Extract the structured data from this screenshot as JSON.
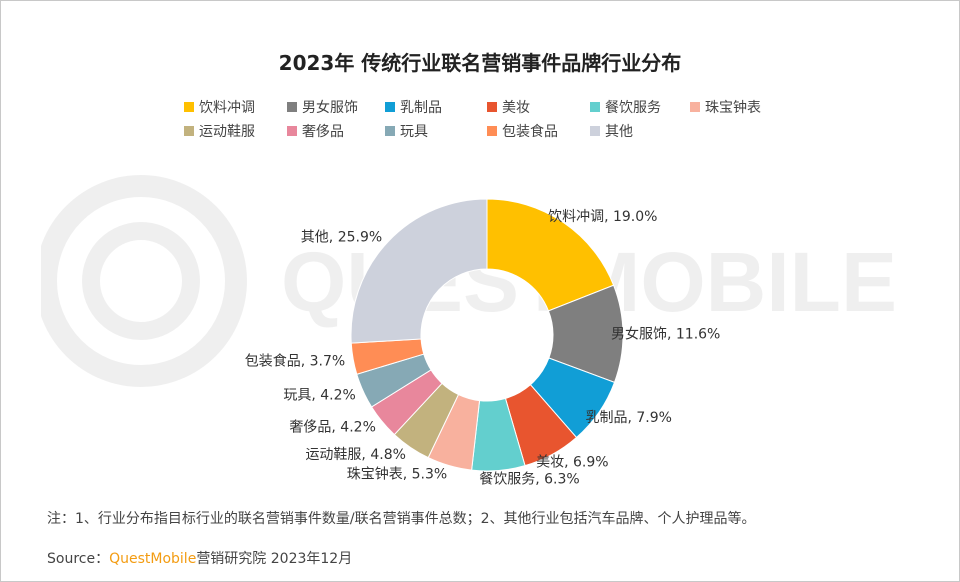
{
  "watermark": "QUESTMOBILE",
  "chart_data": {
    "type": "pie",
    "donut": true,
    "title": "2023年 传统行业联名营销事件品牌行业分布",
    "legend_position": "top",
    "categories": [
      "饮料冲调",
      "男女服饰",
      "乳制品",
      "美妆",
      "餐饮服务",
      "珠宝钟表",
      "运动鞋服",
      "奢侈品",
      "玩具",
      "包装食品",
      "其他"
    ],
    "values": [
      19.0,
      11.6,
      7.9,
      6.9,
      6.3,
      5.3,
      4.8,
      4.2,
      4.2,
      3.7,
      25.9
    ],
    "data_labels": [
      "饮料冲调, 19.0%",
      "男女服饰, 11.6%",
      "乳制品, 7.9%",
      "美妆, 6.9%",
      "餐饮服务, 6.3%",
      "珠宝钟表, 5.3%",
      "运动鞋服, 4.8%",
      "奢侈品, 4.2%",
      "玩具, 4.2%",
      "包装食品, 3.7%",
      "其他, 25.9%"
    ],
    "colors": [
      "#FFC000",
      "#7F7F7F",
      "#119ED6",
      "#E8552F",
      "#63CFCE",
      "#F8B19E",
      "#C2B27E",
      "#E8879C",
      "#86A9B5",
      "#FF8D55",
      "#CDD1DC"
    ]
  },
  "footer": {
    "note": "注：1、行业分布指目标行业的联名营销事件数量/联名营销事件总数；2、其他行业包括汽车品牌、个人护理品等。",
    "source_prefix": "Source：",
    "source_brand": "QuestMobile",
    "source_suffix": "营销研究院 2023年12月"
  }
}
